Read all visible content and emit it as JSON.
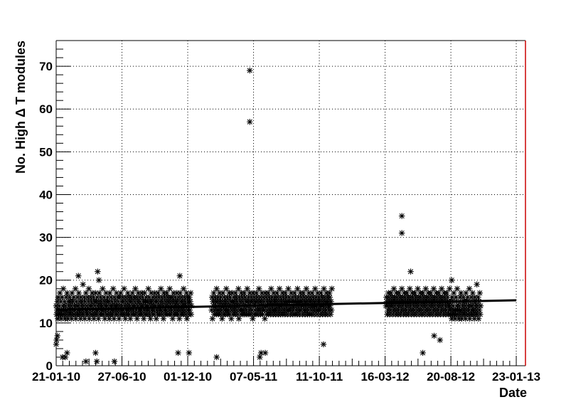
{
  "chart_data": {
    "type": "scatter",
    "xlabel": "Date",
    "ylabel": "No. High Δ T modules",
    "x_ticks": [
      "21-01-10",
      "27-06-10",
      "01-12-10",
      "07-05-11",
      "11-10-11",
      "16-03-12",
      "20-08-12",
      "23-01-13"
    ],
    "xlim": [
      "2010-01-21",
      "2013-02-14"
    ],
    "ylim": [
      0,
      76
    ],
    "y_ticks": [
      0,
      10,
      20,
      30,
      40,
      50,
      60,
      70
    ],
    "grid": true,
    "marker": "asterisk",
    "colors": {
      "marker": "#000000",
      "trend": "#000000",
      "frame": "#000000",
      "right_frame": "#cc0000"
    },
    "trend_line": {
      "x": [
        "2010-01-21",
        "2013-01-23"
      ],
      "y": [
        13.1,
        15.3
      ]
    },
    "outliers": [
      {
        "x": "2010-01-21",
        "y": 5
      },
      {
        "x": "2010-01-22",
        "y": 6
      },
      {
        "x": "2010-01-24",
        "y": 7
      },
      {
        "x": "2010-02-05",
        "y": 2
      },
      {
        "x": "2010-02-12",
        "y": 2
      },
      {
        "x": "2010-02-16",
        "y": 3
      },
      {
        "x": "2010-03-15",
        "y": 21
      },
      {
        "x": "2010-04-02",
        "y": 1
      },
      {
        "x": "2010-04-25",
        "y": 3
      },
      {
        "x": "2010-04-28",
        "y": 1
      },
      {
        "x": "2010-04-30",
        "y": 22
      },
      {
        "x": "2010-05-03",
        "y": 20
      },
      {
        "x": "2010-06-09",
        "y": 1
      },
      {
        "x": "2010-11-08",
        "y": 3
      },
      {
        "x": "2010-11-12",
        "y": 21
      },
      {
        "x": "2010-12-04",
        "y": 3
      },
      {
        "x": "2011-02-08",
        "y": 2
      },
      {
        "x": "2011-04-28",
        "y": 69
      },
      {
        "x": "2011-04-28",
        "y": 57
      },
      {
        "x": "2011-05-22",
        "y": 2
      },
      {
        "x": "2011-05-25",
        "y": 3
      },
      {
        "x": "2011-06-04",
        "y": 3
      },
      {
        "x": "2011-10-21",
        "y": 5
      },
      {
        "x": "2012-04-25",
        "y": 35
      },
      {
        "x": "2012-04-25",
        "y": 31
      },
      {
        "x": "2012-05-16",
        "y": 22
      },
      {
        "x": "2012-06-14",
        "y": 3
      },
      {
        "x": "2012-07-11",
        "y": 7
      },
      {
        "x": "2012-07-25",
        "y": 6
      },
      {
        "x": "2012-08-22",
        "y": 20
      }
    ],
    "daily_series": {
      "segments": [
        {
          "start": "2010-01-21",
          "end": "2010-12-10"
        },
        {
          "start": "2011-01-27",
          "end": "2011-11-10"
        },
        {
          "start": "2012-03-18",
          "end": "2012-10-30"
        }
      ],
      "y": [
        14,
        12,
        13,
        15,
        11,
        16,
        12,
        14,
        13,
        17,
        12,
        15,
        11,
        13,
        16,
        12,
        14,
        18,
        13,
        12,
        15,
        11,
        14,
        13,
        16,
        12,
        17,
        13,
        11,
        15,
        14,
        12,
        16,
        13,
        15,
        12,
        14,
        11,
        17,
        13,
        15,
        12,
        16,
        14,
        12,
        13,
        18,
        11,
        15,
        14,
        12,
        16,
        13,
        14,
        17,
        12,
        15,
        13,
        11,
        16,
        14,
        12,
        15,
        13,
        19,
        12,
        14,
        16,
        11,
        15,
        13,
        17,
        12,
        14,
        13,
        16,
        12,
        15,
        18,
        11,
        14,
        13,
        16,
        12,
        15,
        14,
        17,
        12,
        13,
        16,
        11,
        15,
        14,
        12,
        17,
        13,
        15,
        12,
        16,
        14,
        13,
        11,
        15,
        17,
        12,
        14,
        16,
        13,
        15,
        12,
        14,
        18,
        13,
        12,
        16,
        15,
        11,
        14,
        13,
        17,
        12,
        15,
        14,
        16,
        12,
        13,
        15,
        11,
        17,
        14,
        12,
        16,
        13,
        15,
        14,
        12,
        18,
        13,
        11,
        16,
        14,
        15,
        12,
        13,
        17,
        14,
        12,
        16,
        15,
        13,
        11,
        14,
        16,
        12,
        17,
        13,
        15,
        14,
        12,
        16,
        13,
        15,
        18,
        12,
        14,
        11,
        16,
        13,
        15,
        12,
        14,
        17,
        13,
        16,
        12,
        15,
        14,
        11,
        13,
        16,
        15,
        12,
        17,
        14,
        13,
        12,
        16,
        15,
        14,
        18,
        12,
        13,
        16,
        11,
        15,
        14,
        17,
        12,
        13,
        16,
        15,
        12,
        14,
        13,
        17,
        12,
        16,
        14,
        15,
        11,
        13,
        17,
        12,
        15,
        14,
        16,
        13,
        12,
        15,
        14,
        18,
        13,
        16,
        12,
        15,
        11,
        14,
        17,
        13,
        15,
        12,
        16,
        14,
        13,
        12,
        17,
        15,
        14,
        16,
        11,
        13,
        15,
        12,
        17,
        14,
        16,
        13,
        12,
        15,
        14,
        18,
        13,
        16,
        12,
        15,
        14,
        11,
        17,
        13,
        16,
        12,
        15,
        14,
        13,
        17,
        12,
        16,
        15,
        14,
        12,
        13,
        18,
        16,
        15,
        12,
        14,
        13,
        16,
        11,
        15,
        17,
        12,
        14,
        13,
        16,
        15,
        12,
        14,
        17,
        13,
        15,
        12,
        16,
        14,
        11,
        13,
        17,
        15,
        12,
        16,
        14,
        13,
        15,
        12,
        18,
        14,
        16,
        13,
        15,
        12,
        14,
        17,
        11,
        16,
        13,
        15,
        12,
        14,
        16,
        13,
        15,
        17,
        12,
        14,
        13,
        16,
        11,
        15,
        14,
        17,
        12,
        13,
        16,
        15,
        14,
        12,
        18,
        13,
        15,
        16,
        12,
        14,
        13,
        17,
        15,
        12,
        16,
        14,
        13,
        11,
        15,
        17,
        12,
        14,
        16,
        13,
        15,
        12,
        14,
        18,
        13,
        16,
        15,
        12,
        14,
        13,
        17,
        12,
        16,
        15,
        14,
        11,
        13,
        17,
        15,
        12,
        14,
        16,
        13,
        15,
        12,
        17,
        14,
        16,
        13,
        15,
        12,
        14,
        18,
        11,
        16,
        13,
        15,
        14,
        12,
        17,
        13,
        16,
        15,
        12,
        14,
        13,
        17,
        12,
        16,
        15,
        14,
        13,
        12,
        18,
        15,
        14,
        16,
        12,
        13,
        17,
        15,
        14,
        12,
        16,
        13,
        15,
        11,
        17,
        14,
        12,
        16,
        15,
        13,
        14,
        12,
        17,
        15,
        16,
        13,
        12,
        14,
        18,
        15,
        13,
        16,
        12,
        14,
        15,
        17,
        13,
        12,
        16,
        14,
        15,
        13,
        11,
        17,
        14,
        16,
        12,
        15,
        13,
        14,
        17,
        12,
        16,
        15,
        13,
        14,
        12,
        18,
        15,
        16,
        13,
        14,
        12,
        17,
        15,
        13,
        16,
        14,
        12,
        15,
        13,
        17,
        16,
        14,
        12,
        15,
        13,
        18,
        14,
        16,
        12,
        15,
        13,
        14,
        17,
        12,
        16,
        15,
        13,
        14,
        12,
        17,
        15,
        16,
        13,
        14,
        12,
        15,
        18,
        13,
        16,
        14,
        15,
        12,
        13,
        17,
        15,
        14,
        16,
        12,
        13,
        15,
        14,
        17,
        12,
        16,
        15,
        13,
        14,
        12,
        18,
        15,
        16,
        13,
        14,
        12,
        15,
        17,
        13,
        16,
        14,
        15,
        12,
        14,
        17,
        13,
        16,
        15,
        12,
        14,
        13,
        18,
        15,
        16,
        12,
        14,
        13,
        17,
        15,
        12,
        16,
        14,
        15,
        13,
        12,
        17,
        14,
        16,
        15,
        13,
        12,
        14,
        18,
        15,
        16,
        13,
        14,
        12,
        17,
        15,
        13,
        16,
        14,
        15,
        12,
        13,
        17,
        14,
        16,
        15,
        12,
        14,
        13,
        18,
        16,
        15,
        12,
        14,
        13,
        17,
        15,
        16,
        12,
        14,
        15,
        13,
        17,
        16,
        14,
        12,
        15,
        13,
        18,
        14,
        16,
        15,
        12,
        14,
        13,
        17,
        16,
        15,
        12,
        14,
        13,
        17,
        15,
        16,
        14,
        12,
        15,
        13,
        18,
        16,
        14,
        15,
        12,
        13,
        17,
        16,
        15,
        14,
        12,
        13,
        17,
        15,
        16,
        14,
        12,
        15,
        13,
        18,
        16,
        14,
        15,
        12,
        13,
        17,
        16,
        15,
        14,
        12,
        13,
        17,
        15,
        16,
        14,
        12,
        15,
        13,
        18,
        16,
        14,
        15,
        12,
        13,
        17,
        16,
        15,
        14,
        12,
        13,
        17,
        15,
        16,
        14,
        12,
        15,
        13,
        18,
        16,
        14,
        15,
        12,
        13,
        17,
        16,
        15,
        14,
        12,
        13,
        17,
        15,
        16,
        14,
        12,
        15,
        13,
        18,
        16,
        14,
        15,
        12,
        13,
        17,
        16,
        15,
        14,
        12,
        13,
        17,
        15,
        16,
        14,
        12,
        15,
        13,
        18,
        16,
        14,
        15,
        12,
        13,
        17,
        16,
        15,
        14,
        12,
        13,
        17,
        15,
        16,
        14,
        12,
        15,
        13,
        18,
        16,
        14,
        15,
        12,
        13,
        17,
        16,
        15,
        14,
        12,
        13,
        17,
        15,
        16,
        14,
        12,
        15,
        13,
        18
      ]
    }
  }
}
